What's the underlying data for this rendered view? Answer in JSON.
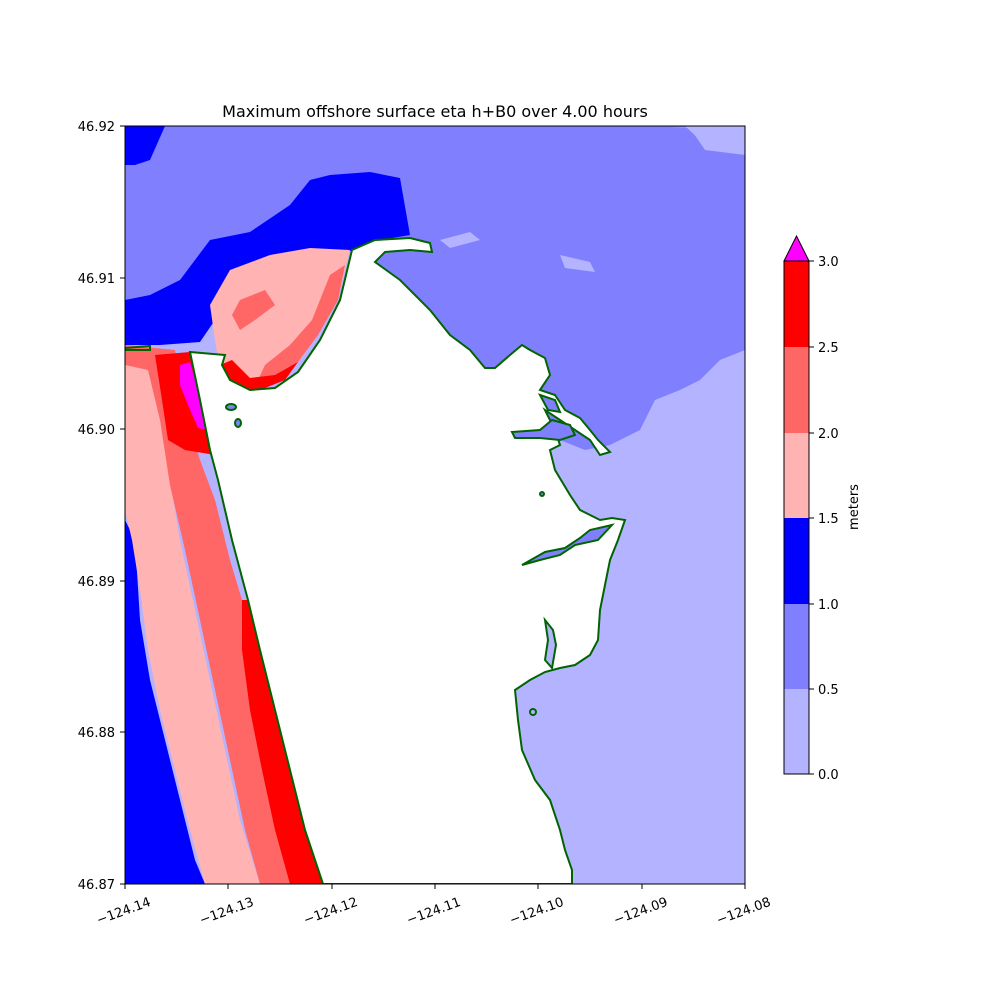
{
  "title": "Maximum offshore surface eta h+B0 over 4.00 hours",
  "colorbar": {
    "label": "meters",
    "extend": "max",
    "levels": [
      "0.0",
      "0.5",
      "1.0",
      "1.5",
      "2.0",
      "2.5",
      "3.0"
    ],
    "colors": [
      "#b3b3ff",
      "#8080ff",
      "#0000ff",
      "#ffb3b3",
      "#ff6666",
      "#ff0000"
    ],
    "over_color": "#ff00ff"
  },
  "axes": {
    "x_ticks": [
      "−124.14",
      "−124.13",
      "−124.12",
      "−124.11",
      "−124.10",
      "−124.09",
      "−124.08"
    ],
    "y_ticks": [
      "46.87",
      "46.88",
      "46.89",
      "46.90",
      "46.91",
      "46.92"
    ],
    "x_range": [
      -124.14,
      -124.08
    ],
    "y_range": [
      46.87,
      46.92
    ]
  },
  "colors": {
    "land": "#ffffff",
    "shoreline": "#006400"
  }
}
